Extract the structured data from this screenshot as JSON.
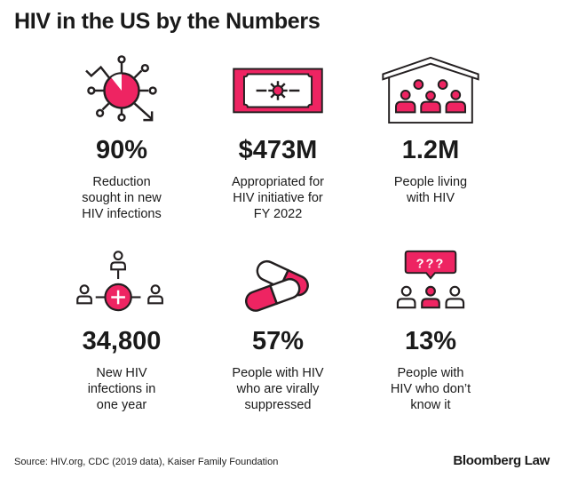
{
  "title": "HIV in the US by the Numbers",
  "colors": {
    "accent": "#ee2462",
    "ink": "#231f20"
  },
  "stats": [
    {
      "icon": "virus-pie-chart-icon",
      "value": "90%",
      "desc": "Reduction\nsought in new\nHIV infections"
    },
    {
      "icon": "money-bill-virus-icon",
      "value": "$473M",
      "desc": "Appropriated for\nHIV initiative for\nFY 2022"
    },
    {
      "icon": "house-people-icon",
      "value": "1.2M",
      "desc": "People living\nwith HIV"
    },
    {
      "icon": "people-network-plus-icon",
      "value": "34,800",
      "desc": "New HIV\ninfections in\none year"
    },
    {
      "icon": "pills-icon",
      "value": "57%",
      "desc": "People with HIV\nwho are virally\nsuppressed"
    },
    {
      "icon": "people-question-icon",
      "value": "13%",
      "desc": "People with\nHIV who don’t\nknow it",
      "bubble": "???"
    }
  ],
  "footer": {
    "source": "Source: HIV.org, CDC (2019 data), Kaiser Family Foundation",
    "brand": "Bloomberg Law"
  }
}
